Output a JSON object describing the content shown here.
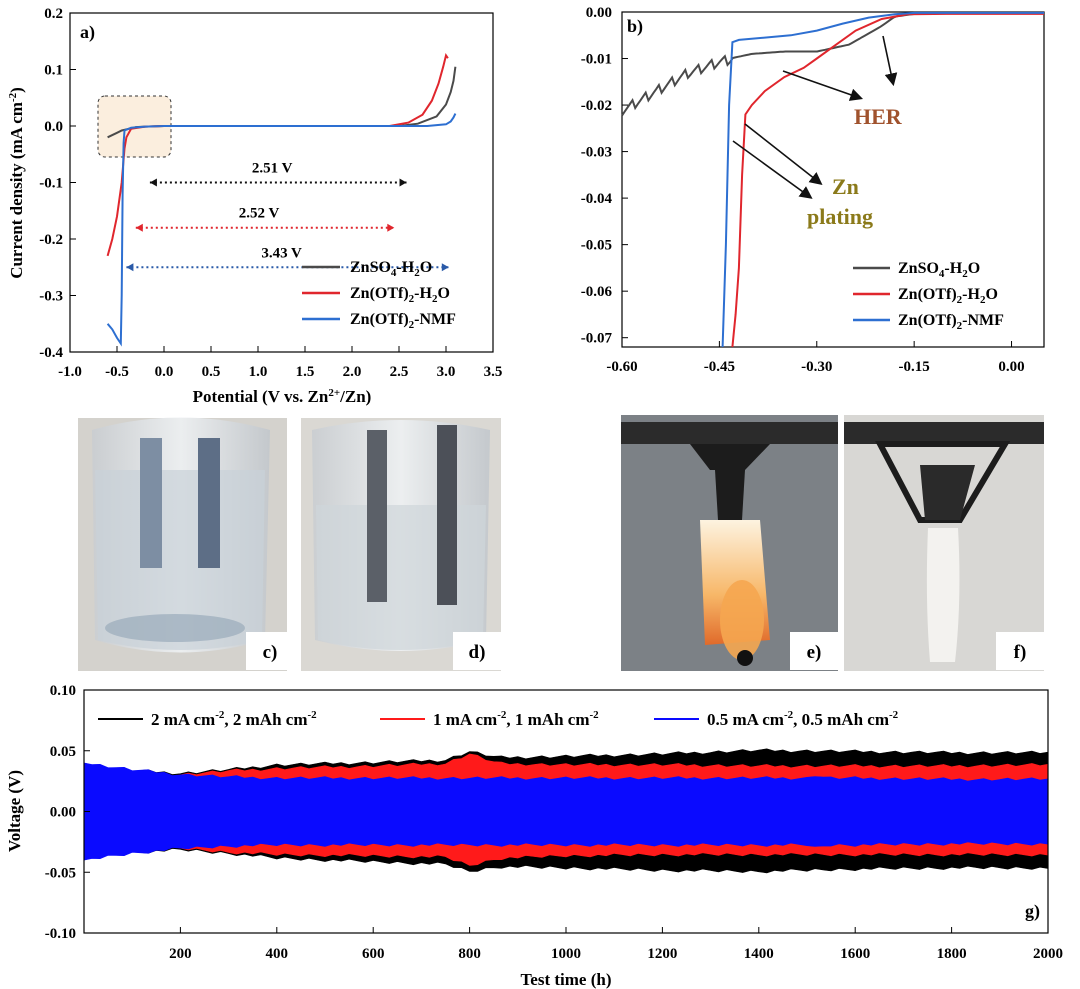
{
  "chart_data": [
    {
      "panel": "a)",
      "type": "line",
      "xlabel": "Potential (V vs. Zn2+/Zn)",
      "xlabel_parts": [
        "Potential (V vs. Zn",
        "2+",
        "/Zn)"
      ],
      "ylabel": "Current density (mA cm-2)",
      "ylabel_parts": [
        "Current density (mA cm",
        "-2",
        ")"
      ],
      "xlim": [
        -1.0,
        3.5
      ],
      "ylim": [
        -0.4,
        0.2
      ],
      "xticks": [
        "-1.0",
        "-0.5",
        "0.0",
        "0.5",
        "1.0",
        "1.5",
        "2.0",
        "2.5",
        "3.0",
        "3.5"
      ],
      "yticks": [
        "0.2",
        "0.1",
        "0.0",
        "-0.1",
        "-0.2",
        "-0.3",
        "-0.4"
      ],
      "annotations": [
        {
          "text": "2.51 V",
          "x1": -0.15,
          "x2": 2.58,
          "y": -0.1,
          "color": "#111111"
        },
        {
          "text": "2.52 V",
          "x1": -0.3,
          "x2": 2.45,
          "y": -0.18,
          "color": "#e0262d"
        },
        {
          "text": "3.43 V",
          "x1": -0.4,
          "x2": 3.03,
          "y": -0.25,
          "color": "#2a5aa8"
        }
      ],
      "legend": "bottom-right",
      "series": [
        {
          "name": "ZnSO4-H2O",
          "color": "#4a4a4a",
          "x": [
            -0.6,
            -0.5,
            -0.45,
            -0.35,
            -0.3,
            -0.2,
            0.0,
            1.0,
            2.0,
            2.5,
            2.7,
            2.9,
            3.0,
            3.05,
            3.08,
            3.1
          ],
          "y": [
            -0.02,
            -0.012,
            -0.008,
            -0.004,
            -0.002,
            -0.001,
            0.0,
            0.0,
            0.0,
            0.0,
            0.004,
            0.017,
            0.038,
            0.06,
            0.08,
            0.105
          ]
        },
        {
          "name": "Zn(OTf)2-H2O",
          "color": "#e0262d",
          "x": [
            -0.6,
            -0.55,
            -0.5,
            -0.45,
            -0.42,
            -0.4,
            -0.35,
            -0.2,
            0.0,
            1.0,
            2.0,
            2.4,
            2.6,
            2.75,
            2.85,
            2.92,
            2.97,
            3.0,
            3.02
          ],
          "y": [
            -0.23,
            -0.2,
            -0.16,
            -0.1,
            -0.04,
            -0.02,
            -0.005,
            -0.001,
            0.0,
            0.0,
            0.0,
            0.0,
            0.006,
            0.02,
            0.045,
            0.075,
            0.105,
            0.125,
            0.12
          ]
        },
        {
          "name": "Zn(OTf)2-NMF",
          "color": "#2d6fd1",
          "x": [
            -0.6,
            -0.55,
            -0.5,
            -0.46,
            -0.45,
            -0.44,
            -0.43,
            -0.42,
            -0.35,
            -0.2,
            0.0,
            1.0,
            2.0,
            2.8,
            3.0,
            3.05,
            3.08,
            3.1
          ],
          "y": [
            -0.35,
            -0.36,
            -0.375,
            -0.385,
            -0.3,
            -0.12,
            -0.03,
            -0.008,
            -0.003,
            -0.001,
            0.0,
            0.0,
            0.0,
            0.0,
            0.003,
            0.008,
            0.015,
            0.022
          ]
        }
      ]
    },
    {
      "panel": "b)",
      "type": "line",
      "xlim": [
        -0.6,
        0.05
      ],
      "ylim": [
        -0.072,
        0.0
      ],
      "xticks": [
        "-0.60",
        "-0.45",
        "-0.30",
        "-0.15",
        "0.00"
      ],
      "yticks": [
        "0.00",
        "-0.01",
        "-0.02",
        "-0.03",
        "-0.04",
        "-0.05",
        "-0.06",
        "-0.07"
      ],
      "annotations": [
        {
          "text": "HER",
          "color": "#a0522d"
        },
        {
          "text": "Zn",
          "color": "#8b7a1a"
        },
        {
          "text": "plating",
          "color": "#8b7a1a"
        }
      ],
      "legend": "bottom-right",
      "series": [
        {
          "name": "ZnSO4-H2O",
          "color": "#4a4a4a",
          "x": [
            -0.6,
            -0.55,
            -0.5,
            -0.45,
            -0.4,
            -0.35,
            -0.3,
            -0.25,
            -0.2,
            -0.18,
            -0.15,
            -0.1,
            0.0,
            0.05
          ],
          "y": [
            -0.021,
            -0.017,
            -0.013,
            -0.0105,
            -0.009,
            -0.0085,
            -0.0085,
            -0.007,
            -0.003,
            -0.001,
            -0.0004,
            -0.0003,
            -0.0003,
            -0.0003
          ]
        },
        {
          "name": "Zn(OTf)2-H2O",
          "color": "#e0262d",
          "x": [
            -0.43,
            -0.425,
            -0.42,
            -0.415,
            -0.41,
            -0.4,
            -0.38,
            -0.35,
            -0.32,
            -0.3,
            -0.27,
            -0.24,
            -0.2,
            -0.16,
            -0.1,
            0.0,
            0.05
          ],
          "y": [
            -0.072,
            -0.065,
            -0.055,
            -0.035,
            -0.022,
            -0.02,
            -0.017,
            -0.014,
            -0.012,
            -0.01,
            -0.007,
            -0.004,
            -0.0015,
            -0.0005,
            -0.0004,
            -0.0004,
            -0.0004
          ]
        },
        {
          "name": "Zn(OTf)2-NMF",
          "color": "#2d6fd1",
          "x": [
            -0.445,
            -0.44,
            -0.435,
            -0.43,
            -0.42,
            -0.38,
            -0.34,
            -0.3,
            -0.26,
            -0.22,
            -0.18,
            -0.15,
            -0.1,
            0.0,
            0.05
          ],
          "y": [
            -0.072,
            -0.05,
            -0.02,
            -0.0065,
            -0.006,
            -0.0055,
            -0.005,
            -0.004,
            -0.0025,
            -0.0012,
            -0.0005,
            -0.0002,
            -0.0002,
            -0.0002,
            -0.0002
          ]
        }
      ]
    },
    {
      "panel": "g)",
      "type": "line",
      "xlabel": "Test time (h)",
      "ylabel": "Voltage (V)",
      "xlim": [
        0,
        2000
      ],
      "ylim": [
        -0.1,
        0.1
      ],
      "xticks": [
        "200",
        "400",
        "600",
        "800",
        "1000",
        "1200",
        "1400",
        "1600",
        "1800",
        "2000"
      ],
      "yticks": [
        "0.10",
        "0.05",
        "0.00",
        "-0.05",
        "-0.10"
      ],
      "legend": "top",
      "series": [
        {
          "name": "2 mA cm-2, 2 mAh cm-2",
          "name_parts": [
            "2 mA cm",
            "-2",
            ", 2 mAh cm",
            "-2"
          ],
          "color": "#000000",
          "x": [
            0,
            200,
            300,
            400,
            600,
            750,
            800,
            860,
            1000,
            1200,
            1400,
            1600,
            1800,
            2000
          ],
          "upper": [
            0.035,
            0.03,
            0.033,
            0.037,
            0.039,
            0.041,
            0.048,
            0.043,
            0.044,
            0.046,
            0.049,
            0.048,
            0.047,
            0.047
          ],
          "lower": [
            -0.035,
            -0.03,
            -0.033,
            -0.037,
            -0.04,
            -0.042,
            -0.048,
            -0.044,
            -0.045,
            -0.047,
            -0.048,
            -0.046,
            -0.045,
            -0.045
          ]
        },
        {
          "name": "1 mA cm-2, 1 mAh cm-2",
          "name_parts": [
            "1 mA cm",
            "-2",
            ", 1 mAh cm",
            "-2"
          ],
          "color": "#ff1a1a",
          "x": [
            0,
            200,
            300,
            400,
            600,
            750,
            800,
            860,
            1000,
            1200,
            1400,
            1600,
            1800,
            2000
          ],
          "upper": [
            0.033,
            0.029,
            0.032,
            0.034,
            0.036,
            0.038,
            0.046,
            0.038,
            0.037,
            0.037,
            0.036,
            0.036,
            0.036,
            0.037
          ],
          "lower": [
            -0.033,
            -0.029,
            -0.032,
            -0.034,
            -0.035,
            -0.036,
            -0.043,
            -0.037,
            -0.035,
            -0.034,
            -0.034,
            -0.034,
            -0.034,
            -0.034
          ]
        },
        {
          "name": "0.5 mA cm-2, 0.5 mAh cm-2",
          "name_parts": [
            "0.5 mA cm",
            "-2",
            ", 0.5 mAh cm",
            "-2"
          ],
          "color": "#0a0aff",
          "x": [
            0,
            10,
            100,
            200,
            300,
            400,
            600,
            800,
            1000,
            1200,
            1400,
            1500,
            1520,
            1540,
            1600,
            1800,
            2000
          ],
          "upper": [
            0.04,
            0.038,
            0.033,
            0.029,
            0.027,
            0.026,
            0.026,
            0.026,
            0.026,
            0.026,
            0.026,
            0.026,
            0.029,
            0.026,
            0.026,
            0.025,
            0.025
          ],
          "lower": [
            -0.04,
            -0.038,
            -0.033,
            -0.029,
            -0.027,
            -0.026,
            -0.026,
            -0.026,
            -0.026,
            -0.026,
            -0.026,
            -0.026,
            -0.029,
            -0.026,
            -0.026,
            -0.025,
            -0.025
          ]
        }
      ]
    }
  ],
  "panel_g_label": "g)",
  "photos": [
    {
      "label": "c)"
    },
    {
      "label": "d)"
    },
    {
      "label": "e)"
    },
    {
      "label": "f)"
    }
  ],
  "colors": {
    "photo_bg_light": "#d8d6d2",
    "photo_bg_gray": "#7f8388",
    "flame": "#f5a650"
  }
}
